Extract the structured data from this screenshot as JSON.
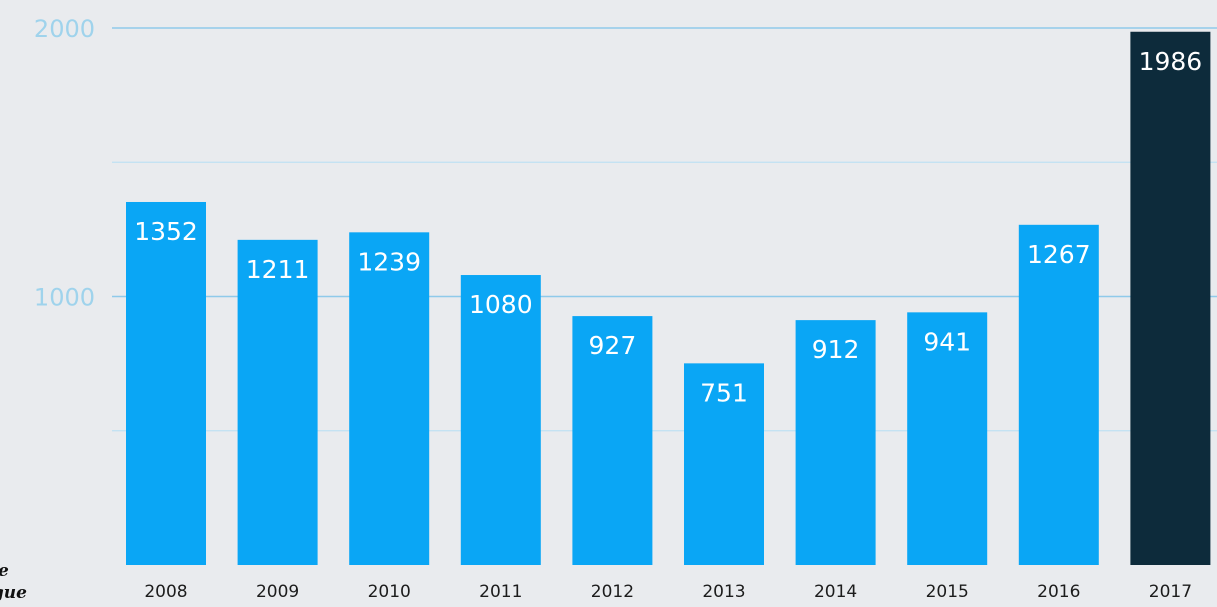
{
  "chart_data": {
    "type": "bar",
    "categories": [
      "2008",
      "2009",
      "2010",
      "2011",
      "2012",
      "2013",
      "2014",
      "2015",
      "2016",
      "2017"
    ],
    "values": [
      1352,
      1211,
      1239,
      1080,
      927,
      751,
      912,
      941,
      1267,
      1986
    ],
    "data_labels": [
      "1352",
      "1211",
      "1239",
      "1080",
      "927",
      "751",
      "912",
      "941",
      "1267",
      "1986"
    ],
    "ylim": [
      0,
      2000
    ],
    "yticks": [
      1000,
      2000
    ],
    "ytick_labels": [
      "1000",
      "2000"
    ],
    "grid": true,
    "highlight_index": 9,
    "colors": {
      "bar": "#0aa6f5",
      "highlight": "#0d2b3b",
      "label": "#ffffff",
      "background": "#e9ebee",
      "gridline": "#8fcaea",
      "ytick": "#9fd3ec"
    }
  },
  "source_note": {
    "line1": "e",
    "line2": "eague"
  }
}
